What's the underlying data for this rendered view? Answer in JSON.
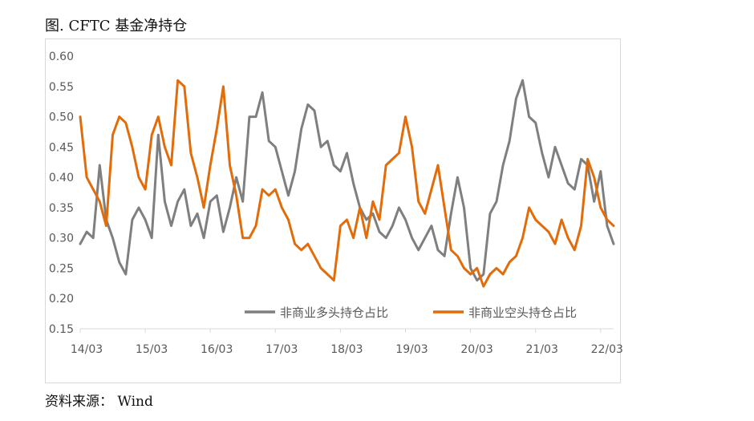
{
  "header": {
    "title": "图. CFTC 基金净持仓"
  },
  "footer": {
    "source": "资料来源： Wind"
  },
  "chart_data": {
    "type": "line",
    "title": "图. CFTC 基金净持仓",
    "xlabel": "",
    "ylabel": "",
    "ylim": [
      0.15,
      0.6
    ],
    "yticks": [
      "0.15",
      "0.20",
      "0.25",
      "0.30",
      "0.35",
      "0.40",
      "0.45",
      "0.50",
      "0.55",
      "0.60"
    ],
    "xlim": [
      2014.0,
      2022.2
    ],
    "xticks": [
      {
        "x": 2014.0,
        "label": "14/03"
      },
      {
        "x": 2015.0,
        "label": "15/03"
      },
      {
        "x": 2016.0,
        "label": "16/03"
      },
      {
        "x": 2017.0,
        "label": "17/03"
      },
      {
        "x": 2018.0,
        "label": "18/03"
      },
      {
        "x": 2019.0,
        "label": "19/03"
      },
      {
        "x": 2020.0,
        "label": "20/03"
      },
      {
        "x": 2021.0,
        "label": "21/03"
      },
      {
        "x": 2022.0,
        "label": "22/03"
      }
    ],
    "grid": false,
    "legend": "bottom-right",
    "series": [
      {
        "name": "非商业多头持仓占比",
        "color": "#7f7f7f",
        "x": [
          2014.0,
          2014.1,
          2014.2,
          2014.3,
          2014.4,
          2014.5,
          2014.6,
          2014.7,
          2014.8,
          2014.9,
          2015.0,
          2015.1,
          2015.2,
          2015.3,
          2015.4,
          2015.5,
          2015.6,
          2015.7,
          2015.8,
          2015.9,
          2016.0,
          2016.1,
          2016.2,
          2016.3,
          2016.4,
          2016.5,
          2016.6,
          2016.7,
          2016.8,
          2016.9,
          2017.0,
          2017.1,
          2017.2,
          2017.3,
          2017.4,
          2017.5,
          2017.6,
          2017.7,
          2017.8,
          2017.9,
          2018.0,
          2018.1,
          2018.2,
          2018.3,
          2018.4,
          2018.5,
          2018.6,
          2018.7,
          2018.8,
          2018.9,
          2019.0,
          2019.1,
          2019.2,
          2019.3,
          2019.4,
          2019.5,
          2019.6,
          2019.7,
          2019.8,
          2019.9,
          2020.0,
          2020.1,
          2020.2,
          2020.3,
          2020.4,
          2020.5,
          2020.6,
          2020.7,
          2020.8,
          2020.9,
          2021.0,
          2021.1,
          2021.2,
          2021.3,
          2021.4,
          2021.5,
          2021.6,
          2021.7,
          2021.8,
          2021.9,
          2022.0,
          2022.1,
          2022.2
        ],
        "values": [
          0.29,
          0.31,
          0.3,
          0.42,
          0.33,
          0.3,
          0.26,
          0.24,
          0.33,
          0.35,
          0.33,
          0.3,
          0.47,
          0.36,
          0.32,
          0.36,
          0.38,
          0.32,
          0.34,
          0.3,
          0.36,
          0.37,
          0.31,
          0.35,
          0.4,
          0.36,
          0.5,
          0.5,
          0.54,
          0.46,
          0.45,
          0.41,
          0.37,
          0.41,
          0.48,
          0.52,
          0.51,
          0.45,
          0.46,
          0.42,
          0.41,
          0.44,
          0.39,
          0.35,
          0.33,
          0.34,
          0.31,
          0.3,
          0.32,
          0.35,
          0.33,
          0.3,
          0.28,
          0.3,
          0.32,
          0.28,
          0.27,
          0.34,
          0.4,
          0.35,
          0.25,
          0.23,
          0.24,
          0.34,
          0.36,
          0.42,
          0.46,
          0.53,
          0.56,
          0.5,
          0.49,
          0.44,
          0.4,
          0.45,
          0.42,
          0.39,
          0.38,
          0.43,
          0.42,
          0.36,
          0.41,
          0.32,
          0.29
        ]
      },
      {
        "name": "非商业空头持仓占比",
        "color": "#e36c0a",
        "x": [
          2014.0,
          2014.1,
          2014.2,
          2014.3,
          2014.4,
          2014.5,
          2014.6,
          2014.7,
          2014.8,
          2014.9,
          2015.0,
          2015.1,
          2015.2,
          2015.3,
          2015.4,
          2015.5,
          2015.6,
          2015.7,
          2015.8,
          2015.9,
          2016.0,
          2016.1,
          2016.2,
          2016.3,
          2016.4,
          2016.5,
          2016.6,
          2016.7,
          2016.8,
          2016.9,
          2017.0,
          2017.1,
          2017.2,
          2017.3,
          2017.4,
          2017.5,
          2017.6,
          2017.7,
          2017.8,
          2017.9,
          2018.0,
          2018.1,
          2018.2,
          2018.3,
          2018.4,
          2018.5,
          2018.6,
          2018.7,
          2018.8,
          2018.9,
          2019.0,
          2019.1,
          2019.2,
          2019.3,
          2019.4,
          2019.5,
          2019.6,
          2019.7,
          2019.8,
          2019.9,
          2020.0,
          2020.1,
          2020.2,
          2020.3,
          2020.4,
          2020.5,
          2020.6,
          2020.7,
          2020.8,
          2020.9,
          2021.0,
          2021.1,
          2021.2,
          2021.3,
          2021.4,
          2021.5,
          2021.6,
          2021.7,
          2021.8,
          2021.9,
          2022.0,
          2022.1,
          2022.2
        ],
        "values": [
          0.5,
          0.4,
          0.38,
          0.36,
          0.32,
          0.47,
          0.5,
          0.49,
          0.45,
          0.4,
          0.38,
          0.47,
          0.5,
          0.45,
          0.42,
          0.56,
          0.55,
          0.44,
          0.4,
          0.35,
          0.42,
          0.48,
          0.55,
          0.42,
          0.37,
          0.3,
          0.3,
          0.32,
          0.38,
          0.37,
          0.38,
          0.35,
          0.33,
          0.29,
          0.28,
          0.29,
          0.27,
          0.25,
          0.24,
          0.23,
          0.32,
          0.33,
          0.3,
          0.35,
          0.3,
          0.36,
          0.33,
          0.42,
          0.43,
          0.44,
          0.5,
          0.45,
          0.36,
          0.34,
          0.38,
          0.42,
          0.35,
          0.28,
          0.27,
          0.25,
          0.24,
          0.25,
          0.22,
          0.24,
          0.25,
          0.24,
          0.26,
          0.27,
          0.3,
          0.35,
          0.33,
          0.32,
          0.31,
          0.29,
          0.33,
          0.3,
          0.28,
          0.32,
          0.43,
          0.4,
          0.35,
          0.33,
          0.32
        ]
      }
    ]
  }
}
